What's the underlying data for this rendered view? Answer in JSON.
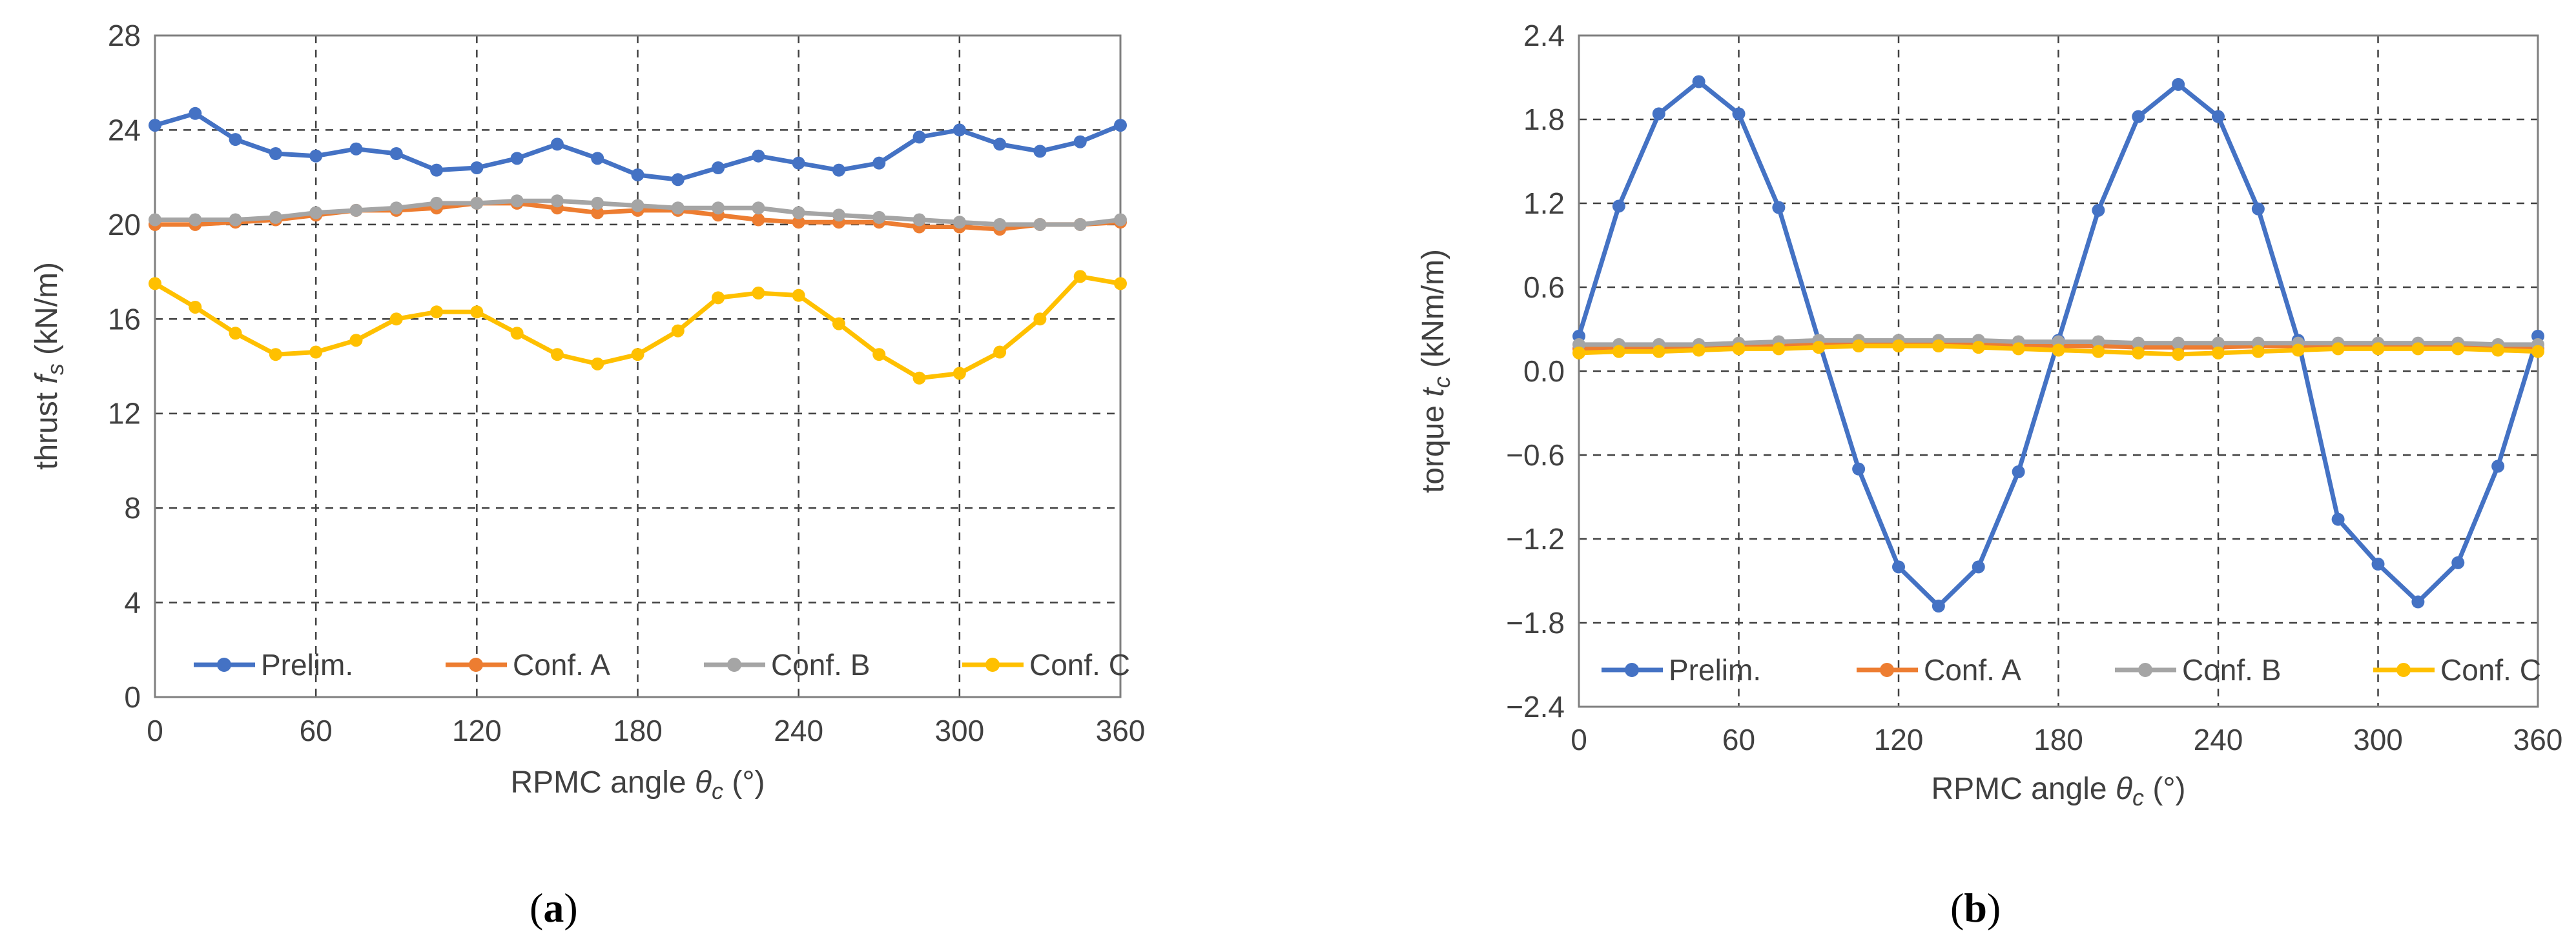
{
  "chart_data": [
    {
      "type": "line",
      "panel": "a",
      "ylabel": "thrust f",
      "ylabel_sub": "s",
      "ylabel_unit": " (kN/m)",
      "xlabel": "RPMC angle θ",
      "xlabel_sub": "c",
      "xlabel_unit": " (°)",
      "xlim": [
        0,
        360
      ],
      "ylim": [
        0,
        28
      ],
      "xticks": [
        0,
        60,
        120,
        180,
        240,
        300,
        360
      ],
      "yticks": [
        0,
        4,
        8,
        12,
        16,
        20,
        24,
        28
      ],
      "ytick_labels": [
        "0",
        "4",
        "8",
        "12",
        "16",
        "20",
        "24",
        "28"
      ],
      "grid": true,
      "legend_position": "bottom",
      "x": [
        0,
        15,
        30,
        45,
        60,
        75,
        90,
        105,
        120,
        135,
        150,
        165,
        180,
        195,
        210,
        225,
        240,
        255,
        270,
        285,
        300,
        315,
        330,
        345,
        360
      ],
      "series": [
        {
          "name": "Prelim.",
          "color": "#4472c4",
          "values": [
            24.2,
            24.7,
            23.6,
            23.0,
            22.9,
            23.2,
            23.0,
            22.3,
            22.4,
            22.8,
            23.4,
            22.8,
            22.1,
            21.9,
            22.4,
            22.9,
            22.6,
            22.3,
            22.6,
            23.7,
            24.0,
            23.4,
            23.1,
            23.5,
            24.2
          ]
        },
        {
          "name": "Conf. A",
          "color": "#ed7d31",
          "values": [
            20.0,
            20.0,
            20.1,
            20.2,
            20.4,
            20.6,
            20.6,
            20.7,
            20.9,
            20.9,
            20.7,
            20.5,
            20.6,
            20.6,
            20.4,
            20.2,
            20.1,
            20.1,
            20.1,
            19.9,
            19.9,
            19.8,
            20.0,
            20.0,
            20.1
          ]
        },
        {
          "name": "Conf. B",
          "color": "#a5a5a5",
          "values": [
            20.2,
            20.2,
            20.2,
            20.3,
            20.5,
            20.6,
            20.7,
            20.9,
            20.9,
            21.0,
            21.0,
            20.9,
            20.8,
            20.7,
            20.7,
            20.7,
            20.5,
            20.4,
            20.3,
            20.2,
            20.1,
            20.0,
            20.0,
            20.0,
            20.2
          ]
        },
        {
          "name": "Conf. C",
          "color": "#ffc000",
          "values": [
            17.5,
            16.5,
            15.4,
            14.5,
            14.6,
            15.1,
            16.0,
            16.3,
            16.3,
            15.4,
            14.5,
            14.1,
            14.5,
            15.5,
            16.9,
            17.1,
            17.0,
            15.8,
            14.5,
            13.5,
            13.7,
            14.6,
            16.0,
            17.8,
            17.5
          ]
        }
      ]
    },
    {
      "type": "line",
      "panel": "b",
      "ylabel": "torque t",
      "ylabel_sub": "c",
      "ylabel_unit": " (kNm/m)",
      "xlabel": "RPMC angle θ",
      "xlabel_sub": "c",
      "xlabel_unit": " (°)",
      "xlim": [
        0,
        360
      ],
      "ylim": [
        -2.4,
        2.4
      ],
      "xticks": [
        0,
        60,
        120,
        180,
        240,
        300,
        360
      ],
      "yticks": [
        -2.4,
        -1.8,
        -1.2,
        -0.6,
        0.0,
        0.6,
        1.2,
        1.8,
        2.4
      ],
      "ytick_labels": [
        "−2.4",
        "−1.8",
        "−1.2",
        "−0.6",
        "0.0",
        "0.6",
        "1.2",
        "1.8",
        "2.4"
      ],
      "grid": true,
      "legend_position": "bottom",
      "x": [
        0,
        15,
        30,
        45,
        60,
        75,
        90,
        105,
        120,
        135,
        150,
        165,
        180,
        195,
        210,
        225,
        240,
        255,
        270,
        285,
        300,
        315,
        330,
        345,
        360
      ],
      "series": [
        {
          "name": "Prelim.",
          "color": "#4472c4",
          "values": [
            0.25,
            1.18,
            1.84,
            2.07,
            1.84,
            1.17,
            0.22,
            -0.7,
            -1.4,
            -1.68,
            -1.4,
            -0.72,
            0.22,
            1.15,
            1.82,
            2.05,
            1.82,
            1.16,
            0.22,
            -1.06,
            -1.38,
            -1.65,
            -1.37,
            -0.68,
            0.25
          ]
        },
        {
          "name": "Conf. A",
          "color": "#ed7d31",
          "values": [
            0.16,
            0.16,
            0.16,
            0.17,
            0.18,
            0.18,
            0.19,
            0.2,
            0.2,
            0.2,
            0.2,
            0.19,
            0.18,
            0.18,
            0.17,
            0.17,
            0.17,
            0.18,
            0.18,
            0.18,
            0.18,
            0.19,
            0.18,
            0.17,
            0.16
          ]
        },
        {
          "name": "Conf. B",
          "color": "#a5a5a5",
          "values": [
            0.19,
            0.19,
            0.19,
            0.19,
            0.2,
            0.21,
            0.22,
            0.22,
            0.22,
            0.22,
            0.22,
            0.21,
            0.21,
            0.21,
            0.2,
            0.2,
            0.2,
            0.2,
            0.2,
            0.2,
            0.2,
            0.2,
            0.2,
            0.19,
            0.19
          ]
        },
        {
          "name": "Conf. C",
          "color": "#ffc000",
          "values": [
            0.13,
            0.14,
            0.14,
            0.15,
            0.16,
            0.16,
            0.17,
            0.18,
            0.18,
            0.18,
            0.17,
            0.16,
            0.15,
            0.14,
            0.13,
            0.12,
            0.13,
            0.14,
            0.15,
            0.16,
            0.16,
            0.16,
            0.16,
            0.15,
            0.14
          ]
        }
      ]
    }
  ],
  "captions": {
    "a": "a",
    "b": "b"
  }
}
